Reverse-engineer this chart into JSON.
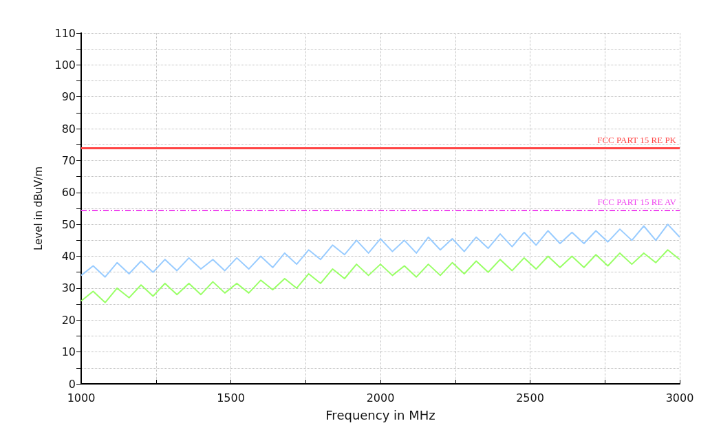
{
  "chart_data": {
    "type": "line",
    "xlabel": "Frequency in MHz",
    "ylabel": "Level in dBuV/m",
    "x": [
      1000,
      1040,
      1080,
      1120,
      1160,
      1200,
      1240,
      1280,
      1320,
      1360,
      1400,
      1440,
      1480,
      1520,
      1560,
      1600,
      1640,
      1680,
      1720,
      1760,
      1800,
      1840,
      1880,
      1920,
      1960,
      2000,
      2040,
      2080,
      2120,
      2160,
      2200,
      2240,
      2280,
      2320,
      2360,
      2400,
      2440,
      2480,
      2520,
      2560,
      2600,
      2640,
      2680,
      2720,
      2760,
      2800,
      2840,
      2880,
      2920,
      2960,
      3000
    ],
    "series": [
      {
        "color": "#99ccff",
        "values": [
          34,
          37,
          33.5,
          38,
          34.5,
          38.5,
          35,
          39,
          35.5,
          39.5,
          36,
          39,
          35.5,
          39.5,
          36,
          40,
          36.5,
          41,
          37.5,
          42,
          39,
          43.5,
          40.5,
          45,
          41,
          45.5,
          41.5,
          45,
          41,
          46,
          42,
          45.5,
          41.5,
          46,
          42.5,
          47,
          43,
          47.5,
          43.5,
          48,
          44,
          47.5,
          44,
          48,
          44.5,
          48.5,
          45,
          49.5,
          45,
          50,
          46
        ]
      },
      {
        "color": "#99ff66",
        "values": [
          26,
          29,
          25.5,
          30,
          27,
          31,
          27.5,
          31.5,
          28,
          31.5,
          28,
          32,
          28.5,
          31.5,
          28.5,
          32.5,
          29.5,
          33,
          30,
          34.5,
          31.5,
          36,
          33,
          37.5,
          34,
          37.5,
          34,
          37,
          33.5,
          37.5,
          34,
          38,
          34.5,
          38.5,
          35,
          39,
          35.5,
          39.5,
          36,
          40,
          36.5,
          40,
          36.5,
          40.5,
          37,
          41,
          37.5,
          41,
          38,
          42,
          39
        ]
      }
    ],
    "ref_lines": [
      {
        "axis": "y",
        "value": 74,
        "label": "FCC PART 15 RE PK",
        "color": "#ff4444",
        "line_style": "solid"
      },
      {
        "axis": "y",
        "value": 54.5,
        "label": "FCC PART 15 RE AV",
        "color": "#ee44ee",
        "line_style": "dashed"
      }
    ],
    "xlim": [
      1000,
      3000
    ],
    "xticks": [
      1000,
      {
        "value": 1250,
        "label": null
      },
      1500,
      {
        "value": 1750,
        "label": null
      },
      2000,
      {
        "value": 2250,
        "label": null
      },
      2500,
      {
        "value": 2750,
        "label": null
      },
      3000
    ],
    "ylim": [
      0,
      110
    ],
    "yticks": [
      0,
      {
        "value": 5,
        "label": null
      },
      10,
      {
        "value": 15,
        "label": null
      },
      20,
      {
        "value": 25,
        "label": null
      },
      30,
      {
        "value": 35,
        "label": null
      },
      40,
      {
        "value": 45,
        "label": null
      },
      50,
      {
        "value": 55,
        "label": null
      },
      60,
      {
        "value": 65,
        "label": null
      },
      70,
      {
        "value": 75,
        "label": null
      },
      80,
      {
        "value": 85,
        "label": null
      },
      90,
      {
        "value": 95,
        "label": null
      },
      100,
      {
        "value": 105,
        "label": null
      },
      110
    ],
    "grid": true,
    "marker": "none",
    "line_style": "solid"
  }
}
